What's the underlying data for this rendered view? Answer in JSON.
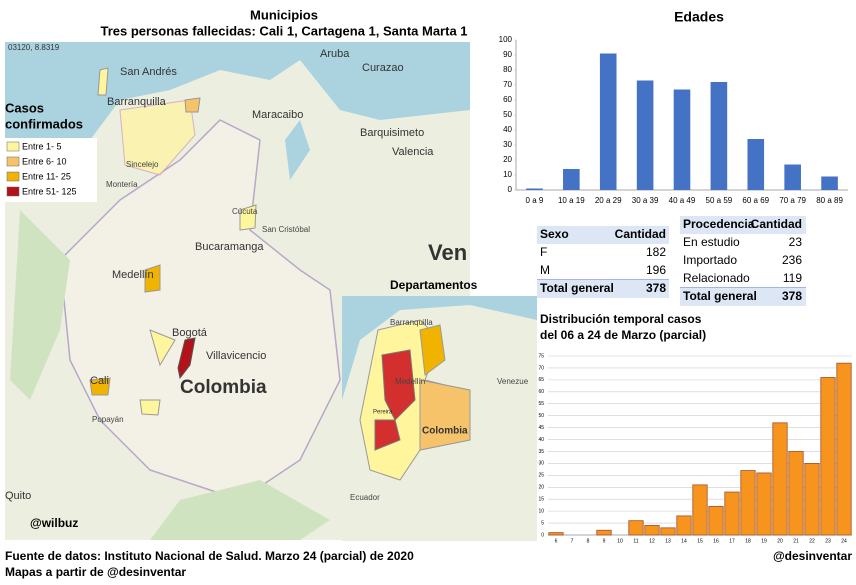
{
  "header": {
    "title": "Municipios",
    "subtitle": "Tres  personas fallecidas:  Cali 1, Cartagena 1, Santa Marta 1"
  },
  "map": {
    "coords": "03120, 8.8319",
    "legend_title": [
      "Casos",
      "confirmados"
    ],
    "legend": [
      {
        "label": "Entre 1- 5",
        "color": "#fff59d"
      },
      {
        "label": "Entre 6- 10",
        "color": "#f6c36b"
      },
      {
        "label": "Entre 11- 25",
        "color": "#f0b400"
      },
      {
        "label": "Entre 51- 125",
        "color": "#b3121b"
      }
    ],
    "labels": [
      "San Andrés",
      "Barranquilla",
      "Aruba",
      "Curazao",
      "Maracaibo",
      "Barquisimeto",
      "Valencia",
      "Montería",
      "Sincelejo",
      "Cúcuta",
      "San Cristóbal",
      "Bucaramanga",
      "Medellín",
      "Bogotá",
      "Villavicencio",
      "Colombia",
      "Cali",
      "Popayán",
      "Quito",
      "Ven"
    ],
    "credit": "@wilbuz"
  },
  "inset": {
    "title": "Departamentos",
    "labels": [
      "Barranquilla",
      "Medellín",
      "Colombia",
      "Venezue",
      "Ecuador",
      "Pereira"
    ]
  },
  "chart_data": [
    {
      "type": "bar",
      "title": "Edades",
      "categories": [
        "0 a 9",
        "10 a 19",
        "20 a 29",
        "30 a 39",
        "40 a 49",
        "50 a 59",
        "60 a 69",
        "70 a 79",
        "80 a 89"
      ],
      "values": [
        1,
        14,
        91,
        73,
        67,
        72,
        34,
        17,
        9
      ],
      "color": "#4472c4",
      "ylim": [
        0,
        100
      ],
      "yticks": [
        0,
        10,
        20,
        30,
        40,
        50,
        60,
        70,
        80,
        90,
        100
      ],
      "grid": false
    },
    {
      "type": "bar",
      "title": "Distribución  temporal casos",
      "subtitle": "del 06 a 24 de Marzo (parcial)",
      "categories": [
        "6",
        "7",
        "8",
        "9",
        "10",
        "11",
        "12",
        "13",
        "14",
        "15",
        "16",
        "17",
        "18",
        "19",
        "20",
        "21",
        "22",
        "23",
        "24"
      ],
      "values": [
        1,
        0,
        0,
        2,
        0,
        6,
        4,
        3,
        8,
        21,
        12,
        18,
        27,
        26,
        47,
        35,
        30,
        66,
        72
      ],
      "color": "#f7941d",
      "ylim": [
        0,
        75
      ],
      "yticks": [
        0,
        5,
        10,
        15,
        20,
        25,
        30,
        35,
        40,
        45,
        50,
        55,
        60,
        65,
        70,
        75
      ],
      "grid": true
    }
  ],
  "tables": [
    {
      "header": [
        "Sexo",
        "Cantidad"
      ],
      "rows": [
        [
          "F",
          "182"
        ],
        [
          "M",
          "196"
        ]
      ],
      "total": [
        "Total general",
        "378"
      ]
    },
    {
      "header": [
        "Procedencia",
        "Cantidad"
      ],
      "rows": [
        [
          "En estudio",
          "23"
        ],
        [
          "Importado",
          "236"
        ],
        [
          "Relacionado",
          "119"
        ]
      ],
      "total": [
        "Total general",
        "378"
      ]
    }
  ],
  "footer": {
    "source": "Fuente de datos:  Instituto  Nacional de Salud. Marzo 24 (parcial) de 2020",
    "maps": "Mapas a partir de @desinventar",
    "handle": "@desinventar"
  }
}
